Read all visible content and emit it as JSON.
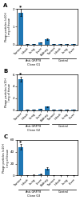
{
  "chart_data": [
    {
      "type": "bar",
      "title": "A",
      "ylabel": "Phage particles (x10⁴)\n/ mg of tissue",
      "categories": [
        "Tumor",
        "Heart",
        "Lung",
        "Liver",
        "Kidney",
        "Tumor",
        "Heart",
        "Lung",
        "Liver"
      ],
      "values": [
        1.8,
        0.02,
        0.04,
        0.12,
        0.3,
        0.02,
        0.04,
        0.02,
        0.02
      ],
      "errors": [
        0.2,
        0.005,
        0.01,
        0.02,
        0.04,
        0.005,
        0.008,
        0.005,
        0.005
      ],
      "ylim": [
        0,
        2
      ],
      "yticks": [
        0,
        1,
        2
      ],
      "groups": [
        {
          "name": "Anti-GRP78\nClone G1",
          "size": 5
        },
        {
          "name": "Control",
          "size": 4
        }
      ],
      "annotations": [
        {
          "text": "*",
          "index": 0
        }
      ]
    },
    {
      "type": "bar",
      "title": "B",
      "ylabel": "Phage particles (x10⁴)\n/ mg of tissue",
      "categories": [
        "Tumor",
        "Heart",
        "Lung",
        "Liver",
        "Kidney",
        "Tumor",
        "Heart",
        "Lung",
        "Liver"
      ],
      "values": [
        5.2,
        0.05,
        0.08,
        0.18,
        0.55,
        0.04,
        0.06,
        0.03,
        0.03
      ],
      "errors": [
        0.45,
        0.01,
        0.02,
        0.04,
        0.08,
        0.01,
        0.015,
        0.008,
        0.008
      ],
      "ylim": [
        0,
        6
      ],
      "yticks": [
        0,
        2,
        4,
        6
      ],
      "groups": [
        {
          "name": "Anti-GRP78\nClone G2",
          "size": 5
        },
        {
          "name": "Control",
          "size": 4
        }
      ],
      "annotations": [
        {
          "text": "*",
          "index": 0
        }
      ]
    },
    {
      "type": "bar",
      "title": "C",
      "ylabel": "Phage particles (x10⁴)\n/ mg of tissue",
      "categories": [
        "Tumor",
        "Heart",
        "Lung",
        "Liver",
        "Kidney",
        "Tumor",
        "Heart",
        "Lung",
        "Liver"
      ],
      "values": [
        48,
        0.5,
        1.2,
        2.5,
        12,
        0.4,
        0.6,
        0.3,
        0.3
      ],
      "errors": [
        4.5,
        0.1,
        0.2,
        0.5,
        2.0,
        0.1,
        0.15,
        0.08,
        0.08
      ],
      "ylim": [
        0,
        60
      ],
      "yticks": [
        0,
        20,
        40,
        60
      ],
      "groups": [
        {
          "name": "Anti-GRP78\nClone G3",
          "size": 5
        },
        {
          "name": "Control",
          "size": 4
        }
      ],
      "annotations": [
        {
          "text": "*",
          "index": 0
        }
      ]
    }
  ]
}
